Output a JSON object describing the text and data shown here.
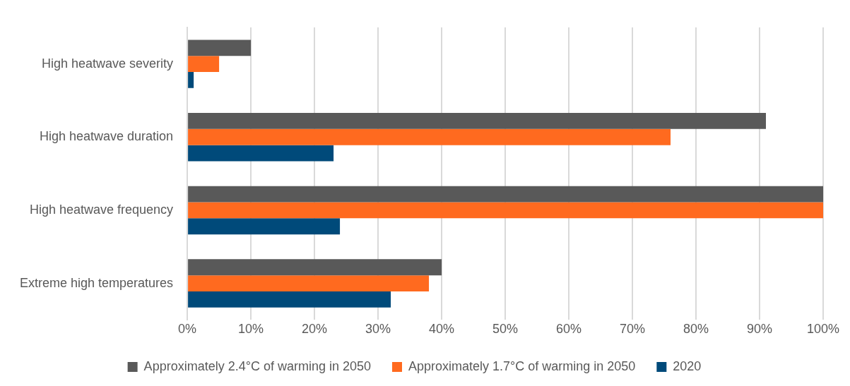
{
  "chart_data": {
    "type": "bar",
    "orientation": "horizontal",
    "categories": [
      "High heatwave severity",
      "High heatwave duration",
      "High heatwave frequency",
      "Extreme high temperatures"
    ],
    "series": [
      {
        "name": "Approximately 2.4°C of warming in 2050",
        "color": "#595959",
        "values": [
          10,
          91,
          100,
          40
        ]
      },
      {
        "name": "Approximately 1.7°C of warming in 2050",
        "color": "#ff6a1f",
        "values": [
          5,
          76,
          100,
          38
        ]
      },
      {
        "name": "2020",
        "color": "#004a7a",
        "values": [
          1,
          23,
          24,
          32
        ]
      }
    ],
    "xlim": [
      0,
      100
    ],
    "xticks": [
      {
        "value": 0,
        "label": "0%"
      },
      {
        "value": 10,
        "label": "10%"
      },
      {
        "value": 20,
        "label": "20%"
      },
      {
        "value": 30,
        "label": "30%"
      },
      {
        "value": 40,
        "label": "40%"
      },
      {
        "value": 50,
        "label": "50%"
      },
      {
        "value": 60,
        "label": "60%"
      },
      {
        "value": 70,
        "label": "70%"
      },
      {
        "value": 80,
        "label": "80%"
      },
      {
        "value": 90,
        "label": "90%"
      },
      {
        "value": 100,
        "label": "100%"
      }
    ],
    "grid": "x",
    "legend": "bottom"
  }
}
